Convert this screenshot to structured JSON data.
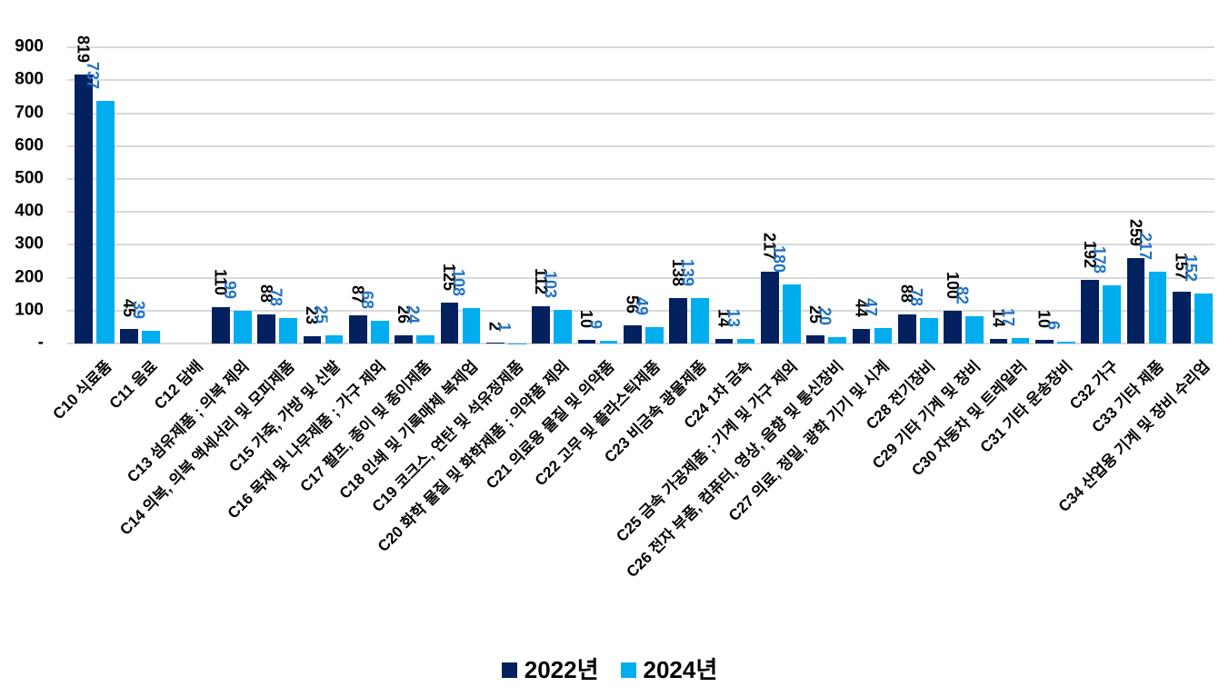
{
  "chart_data": {
    "type": "bar",
    "title": "",
    "xlabel": "",
    "ylabel": "",
    "ylim": [
      0,
      900
    ],
    "ytick_step": 100,
    "grid": true,
    "legend_position": "bottom",
    "gridline_color": "#D9D9D9",
    "ytick_labels": [
      "-",
      "100",
      "200",
      "300",
      "400",
      "500",
      "600",
      "700",
      "800",
      "900"
    ],
    "categories": [
      "C10 식료품",
      "C11 음료",
      "C12 담배",
      "C13 섬유제품 ; 의복 제외",
      "C14 의복, 의복 액세서리 및 모피제품",
      "C15 가죽, 가방 및 신발",
      "C16 목재 및 나무제품 ; 가구 제외",
      "C17 펄프, 종이 및 종이제품",
      "C18 인쇄 및 기록매체 복제업",
      "C19 코크스, 연탄 및 석유정제품",
      "C20 화학 물질 및 화학제품 ; 의약품 제외",
      "C21 의료용 물질 및 의약품",
      "C22 고무 및 플라스틱제품",
      "C23 비금속 광물제품",
      "C24 1차 금속",
      "C25 금속 가공제품 ; 기계 및 가구 제외",
      "C26 전자 부품, 컴퓨터, 영상, 음향 및 통신장비",
      "C27 의료, 정밀, 광학 기기 및 시계",
      "C28 전기장비",
      "C29 기타 기계 및 장비",
      "C30 자동차 및 트레일러",
      "C31 기타 운송장비",
      "C32 가구",
      "C33 기타 제품",
      "C34 산업용 기계 및 장비 수리업"
    ],
    "series": [
      {
        "name": "2022년",
        "color": "#03215F",
        "label_color": "#000000",
        "values": [
          819,
          45,
          null,
          110,
          88,
          23,
          87,
          26,
          125,
          2,
          112,
          10,
          56,
          138,
          14,
          217,
          25,
          44,
          88,
          100,
          14,
          10,
          192,
          259,
          157
        ]
      },
      {
        "name": "2024년",
        "color": "#00AEEF",
        "label_color": "#2273C3",
        "values": [
          737,
          39,
          null,
          99,
          78,
          25,
          68,
          24,
          108,
          1,
          103,
          9,
          49,
          139,
          13,
          180,
          20,
          47,
          78,
          82,
          17,
          6,
          178,
          217,
          152
        ]
      }
    ]
  }
}
